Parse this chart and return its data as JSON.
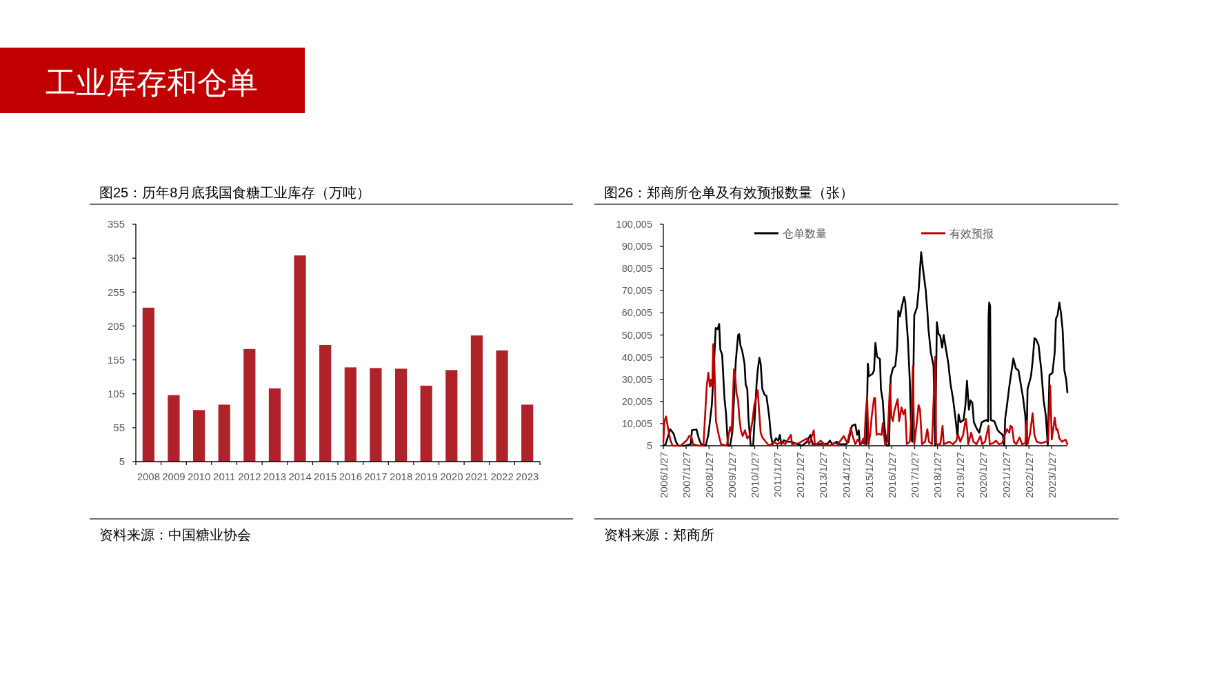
{
  "chart_data": [
    {
      "type": "other",
      "title": "工业库存和仓单"
    },
    {
      "type": "bar",
      "title": "图25：历年8月底我国食糖工业库存（万吨）",
      "categories": [
        "2008",
        "2009",
        "2010",
        "2011",
        "2012",
        "2013",
        "2014",
        "2015",
        "2016",
        "2017",
        "2018",
        "2019",
        "2020",
        "2021",
        "2022",
        "2023"
      ],
      "values": [
        232,
        103,
        81,
        89,
        171,
        113,
        309,
        177,
        144,
        143,
        142,
        117,
        140,
        191,
        169,
        89
      ],
      "color": "#AF2229",
      "ylim": [
        5,
        355
      ],
      "yticks": [
        5,
        55,
        105,
        155,
        205,
        255,
        305,
        355
      ],
      "annotations": [
        "资料来源：中国糖业协会"
      ]
    },
    {
      "type": "line",
      "title": "图26：郑商所仓单及有效预报数量（张）",
      "series": [
        {
          "name": "仓单数量",
          "color": "#000000",
          "x": [
            "2006-01-27",
            "2006-03-05",
            "2006-05-17",
            "2006-07-11",
            "2006-08-17",
            "2006-09-23",
            "2007-01-11",
            "2007-04-11",
            "2007-04-29",
            "2007-07-11",
            "2007-08-17",
            "2007-09-23",
            "2007-12-05",
            "2008-01-16",
            "2008-03-12",
            "2008-04-18",
            "2008-05-13",
            "2008-06-12",
            "2008-07-08",
            "2008-07-26",
            "2008-08-24",
            "2008-09-30",
            "2008-10-26",
            "2008-11-24",
            "2008-12-29",
            "2009-02-03",
            "2009-03-30",
            "2009-05-06",
            "2009-05-24",
            "2009-06-12",
            "2009-07-11",
            "2009-08-17",
            "2009-09-04",
            "2009-09-30",
            "2009-10-19",
            "2009-11-24",
            "2010-01-02",
            "2010-02-25",
            "2010-03-16",
            "2010-04-11",
            "2010-05-02",
            "2010-05-28",
            "2010-07-04",
            "2010-08-02",
            "2010-09-15",
            "2010-10-11",
            "2010-11-09",
            "2011-01-02",
            "2011-02-07",
            "2011-03-05",
            "2011-03-27",
            "2011-05-10",
            "2011-06-16",
            "2011-08-28",
            "2011-11-09",
            "2012-02-25",
            "2012-05-10",
            "2012-07-04",
            "2012-08-10",
            "2012-11-09",
            "2013-04-07",
            "2013-05-13",
            "2013-06-19",
            "2013-08-31",
            "2013-10-08",
            "2014-01-27",
            "2014-03-05",
            "2014-04-29",
            "2014-06-23",
            "2014-07-22",
            "2014-08-17",
            "2014-09-04",
            "2014-11-17",
            "2014-12-16",
            "2015-01-09",
            "2015-01-27",
            "2015-03-23",
            "2015-04-18",
            "2015-05-10",
            "2015-06-05",
            "2015-07-22",
            "2015-08-06",
            "2015-09-04",
            "2015-09-30",
            "2015-11-09",
            "2015-12-14",
            "2016-01-09",
            "2016-02-14",
            "2016-03-23",
            "2016-04-22",
            "2016-05-10",
            "2016-06-05",
            "2016-07-11",
            "2016-08-10",
            "2016-08-28",
            "2016-10-11",
            "2016-11-09",
            "2016-12-05",
            "2016-12-21",
            "2017-01-20",
            "2017-03-05",
            "2017-04-03",
            "2017-05-10",
            "2017-06-05",
            "2017-07-22",
            "2017-08-17",
            "2017-09-04",
            "2017-10-11",
            "2017-11-24",
            "2017-12-21",
            "2018-01-16",
            "2018-02-11",
            "2018-03-12",
            "2018-04-11",
            "2018-05-06",
            "2018-06-01",
            "2018-07-19",
            "2018-08-24",
            "2018-09-30",
            "2018-11-06",
            "2018-12-13",
            "2018-12-29",
            "2019-01-27",
            "2019-03-19",
            "2019-04-18",
            "2019-05-13",
            "2019-06-12",
            "2019-07-08",
            "2019-08-06",
            "2019-08-31",
            "2019-10-11",
            "2019-11-24",
            "2020-01-02",
            "2020-03-16",
            "2020-04-14",
            "2020-04-22",
            "2020-05-02",
            "2020-05-17",
            "2020-05-28",
            "2020-07-22",
            "2020-09-15",
            "2020-10-22",
            "2020-12-05",
            "2020-12-29",
            "2021-01-12",
            "2021-02-11",
            "2021-03-19",
            "2021-04-25",
            "2021-05-24",
            "2021-06-30",
            "2021-08-13",
            "2021-09-19",
            "2021-10-26",
            "2021-12-01",
            "2021-12-19",
            "2022-01-05",
            "2022-03-01",
            "2022-03-27",
            "2022-04-25",
            "2022-05-21",
            "2022-06-30",
            "2022-08-13",
            "2022-09-19",
            "2022-10-26",
            "2022-11-24",
            "2022-12-21",
            "2023-02-07",
            "2023-03-16",
            "2023-04-03",
            "2023-04-29",
            "2023-05-28",
            "2023-06-23",
            "2023-07-19",
            "2023-08-17",
            "2023-09-15",
            "2023-10-04"
          ],
          "values": [
            5,
            700,
            7500,
            5400,
            1800,
            5,
            5,
            700,
            7000,
            7300,
            3300,
            700,
            5,
            4900,
            18400,
            38100,
            53200,
            52600,
            55000,
            43300,
            41200,
            21500,
            14200,
            5,
            5,
            5900,
            38100,
            50000,
            50400,
            45400,
            42800,
            37100,
            27700,
            25600,
            12100,
            5,
            5,
            27700,
            34000,
            39700,
            37100,
            25600,
            23000,
            22500,
            13200,
            4900,
            700,
            3300,
            2300,
            4900,
            700,
            2500,
            1800,
            1800,
            1000,
            5,
            1800,
            4900,
            700,
            700,
            1000,
            2300,
            700,
            1800,
            700,
            700,
            1800,
            9000,
            9600,
            4900,
            7000,
            700,
            1800,
            700,
            37100,
            31400,
            32400,
            34000,
            46400,
            40200,
            39100,
            25600,
            20500,
            9000,
            5,
            5,
            30800,
            35000,
            36000,
            44300,
            61000,
            58400,
            63600,
            67200,
            65100,
            47500,
            29800,
            2800,
            1800,
            58900,
            62500,
            71300,
            87400,
            80700,
            70300,
            61000,
            52600,
            42300,
            36000,
            5,
            55800,
            50600,
            49500,
            44300,
            50000,
            45400,
            37100,
            27700,
            21500,
            13200,
            3800,
            14200,
            10600,
            11600,
            18400,
            29300,
            16300,
            20500,
            19400,
            10600,
            8000,
            5900,
            10600,
            11600,
            11000,
            58900,
            64600,
            63000,
            11600,
            11100,
            7000,
            5900,
            4900,
            5,
            12100,
            18400,
            26700,
            34000,
            39400,
            35000,
            34000,
            27700,
            21500,
            13200,
            5,
            25600,
            31400,
            38100,
            48500,
            48000,
            45400,
            34000,
            20500,
            13200,
            5,
            31900,
            32900,
            42300,
            57300,
            58900,
            64600,
            59900,
            52600,
            34000,
            29800,
            24100
          ]
        },
        {
          "name": "有效预报",
          "color": "#C00000",
          "x": [
            "2006-01-27",
            "2006-02-14",
            "2006-03-12",
            "2006-04-11",
            "2006-05-17",
            "2006-06-23",
            "2006-10-30",
            "2007-01-11",
            "2007-02-14",
            "2007-03-16",
            "2007-04-18",
            "2007-05-17",
            "2007-08-17",
            "2007-10-30",
            "2007-12-21",
            "2008-01-16",
            "2008-02-11",
            "2008-03-01",
            "2008-03-19",
            "2008-04-03",
            "2008-04-22",
            "2008-05-17",
            "2008-06-30",
            "2008-08-06",
            "2008-11-06",
            "2008-12-29",
            "2009-01-23",
            "2009-03-01",
            "2009-03-19",
            "2009-04-11",
            "2009-05-06",
            "2009-05-24",
            "2009-06-19",
            "2009-07-19",
            "2009-08-24",
            "2009-09-30",
            "2009-11-13",
            "2009-12-21",
            "2010-01-20",
            "2010-02-17",
            "2010-03-16",
            "2010-04-03",
            "2010-05-02",
            "2010-05-28",
            "2010-07-22",
            "2010-09-15",
            "2010-12-04",
            "2011-01-20",
            "2011-04-03",
            "2011-05-28",
            "2011-08-28",
            "2011-09-15",
            "2012-01-04",
            "2012-05-10",
            "2012-06-16",
            "2012-08-28",
            "2012-09-15",
            "2012-12-16",
            "2013-02-11",
            "2013-05-13",
            "2013-07-26",
            "2013-09-19",
            "2013-12-19",
            "2014-02-14",
            "2014-04-11",
            "2014-05-17",
            "2014-06-23",
            "2014-07-30",
            "2014-09-23",
            "2014-10-30",
            "2014-11-15",
            "2014-12-03",
            "2014-12-29",
            "2015-01-20",
            "2015-02-14",
            "2015-03-12",
            "2015-04-18",
            "2015-05-06",
            "2015-05-28",
            "2015-06-30",
            "2015-08-17",
            "2015-09-04",
            "2015-10-11",
            "2015-11-17",
            "2015-12-03",
            "2015-12-29",
            "2016-01-20",
            "2016-02-14",
            "2016-03-05",
            "2016-04-03",
            "2016-04-29",
            "2016-05-24",
            "2016-06-30",
            "2016-07-30",
            "2016-08-28",
            "2016-09-23",
            "2016-11-09",
            "2016-12-03",
            "2016-12-29",
            "2017-01-20",
            "2017-03-05",
            "2017-03-30",
            "2017-04-22",
            "2017-05-24",
            "2017-07-11",
            "2017-08-17",
            "2017-09-12",
            "2017-10-30",
            "2017-12-21",
            "2018-01-05",
            "2018-03-12",
            "2018-04-18",
            "2018-05-06",
            "2018-08-06",
            "2018-09-30",
            "2018-11-24",
            "2018-12-21",
            "2019-01-27",
            "2019-03-12",
            "2019-04-25",
            "2019-05-17",
            "2019-06-01",
            "2019-07-19",
            "2019-08-24",
            "2019-10-11",
            "2019-12-14",
            "2020-01-09",
            "2020-02-25",
            "2020-04-22",
            "2020-05-10",
            "2020-07-04",
            "2020-08-17",
            "2020-10-04",
            "2020-11-28",
            "2021-01-05",
            "2021-02-11",
            "2021-03-19",
            "2021-04-06",
            "2021-05-02",
            "2021-06-01",
            "2021-07-08",
            "2021-08-31",
            "2021-10-08",
            "2021-12-01",
            "2021-12-19",
            "2022-01-05",
            "2022-02-11",
            "2022-03-27",
            "2022-04-25",
            "2022-06-01",
            "2022-08-13",
            "2022-10-26",
            "2022-12-01",
            "2023-01-02",
            "2023-01-27",
            "2023-03-16",
            "2023-04-11",
            "2023-04-29",
            "2023-05-28",
            "2023-07-11",
            "2023-09-04",
            "2023-10-04"
          ],
          "values": [
            1800,
            11100,
            13200,
            8000,
            2800,
            5,
            5,
            1800,
            2800,
            4400,
            4400,
            700,
            5,
            5,
            26700,
            32900,
            26700,
            29800,
            26700,
            45900,
            37100,
            11100,
            4900,
            700,
            5,
            8500,
            5900,
            34500,
            31900,
            23600,
            20500,
            13200,
            7000,
            4400,
            7000,
            3300,
            4900,
            11100,
            18400,
            21500,
            25100,
            17300,
            5900,
            3800,
            1800,
            5,
            1800,
            700,
            1800,
            700,
            4900,
            700,
            1200,
            3300,
            700,
            7000,
            5,
            2300,
            700,
            5,
            1200,
            700,
            4400,
            1200,
            8000,
            3800,
            700,
            2800,
            700,
            3300,
            700,
            13200,
            22500,
            700,
            4900,
            13200,
            21500,
            21500,
            4900,
            5400,
            4900,
            10100,
            700,
            1800,
            11100,
            27700,
            13200,
            11100,
            15300,
            18400,
            21000,
            11100,
            17300,
            14200,
            16300,
            700,
            1800,
            11100,
            36000,
            700,
            11100,
            18400,
            16300,
            700,
            1800,
            7500,
            1800,
            700,
            40200,
            700,
            700,
            9000,
            700,
            1800,
            700,
            2300,
            4900,
            1800,
            4900,
            12100,
            7000,
            700,
            5900,
            1800,
            700,
            4400,
            700,
            1800,
            9000,
            700,
            1200,
            2300,
            700,
            1200,
            4900,
            7500,
            5900,
            9000,
            8500,
            1800,
            700,
            3800,
            700,
            1200,
            11100,
            700,
            4900,
            14700,
            4900,
            1800,
            1200,
            1800,
            2300,
            27200,
            2800,
            12700,
            7000,
            7500,
            3300,
            1800,
            2800,
            700
          ]
        }
      ],
      "xlim": [
        "2006-01-27",
        "2023-10-04"
      ],
      "xticks": [
        {
          "value": "2006-01-27",
          "label": "2006/1/27"
        },
        {
          "value": "2007-01-27",
          "label": "2007/1/27"
        },
        {
          "value": "2008-01-27",
          "label": "2008/1/27"
        },
        {
          "value": "2009-01-27",
          "label": "2009/1/27"
        },
        {
          "value": "2010-01-27",
          "label": "2010/1/27"
        },
        {
          "value": "2011-01-27",
          "label": "2011/1/27"
        },
        {
          "value": "2012-01-27",
          "label": "2012/1/27"
        },
        {
          "value": "2013-01-27",
          "label": "2013/1/27"
        },
        {
          "value": "2014-01-27",
          "label": "2014/1/27"
        },
        {
          "value": "2015-01-27",
          "label": "2015/1/27"
        },
        {
          "value": "2016-01-27",
          "label": "2016/1/27"
        },
        {
          "value": "2017-01-27",
          "label": "2017/1/27"
        },
        {
          "value": "2018-01-27",
          "label": "2018/1/27"
        },
        {
          "value": "2019-01-27",
          "label": "2019/1/27"
        },
        {
          "value": "2020-01-27",
          "label": "2020/1/27"
        },
        {
          "value": "2021-01-27",
          "label": "2021/1/27"
        },
        {
          "value": "2022-01-27",
          "label": "2022/1/27"
        },
        {
          "value": "2023-01-27",
          "label": "2023/1/27"
        }
      ],
      "ylim": [
        5,
        100005
      ],
      "yticks": [
        5,
        {
          "value": 10005,
          "label": "10,005"
        },
        {
          "value": 20005,
          "label": "20,005"
        },
        {
          "value": 30005,
          "label": "30,005"
        },
        {
          "value": 40005,
          "label": "40,005"
        },
        {
          "value": 50005,
          "label": "50,005"
        },
        {
          "value": 60005,
          "label": "60,005"
        },
        {
          "value": 70005,
          "label": "70,005"
        },
        {
          "value": 80005,
          "label": "80,005"
        },
        {
          "value": 90005,
          "label": "90,005"
        },
        {
          "value": 100005,
          "label": "100,005"
        }
      ],
      "legend": "top",
      "annotations": [
        "资料来源：郑商所"
      ]
    }
  ]
}
